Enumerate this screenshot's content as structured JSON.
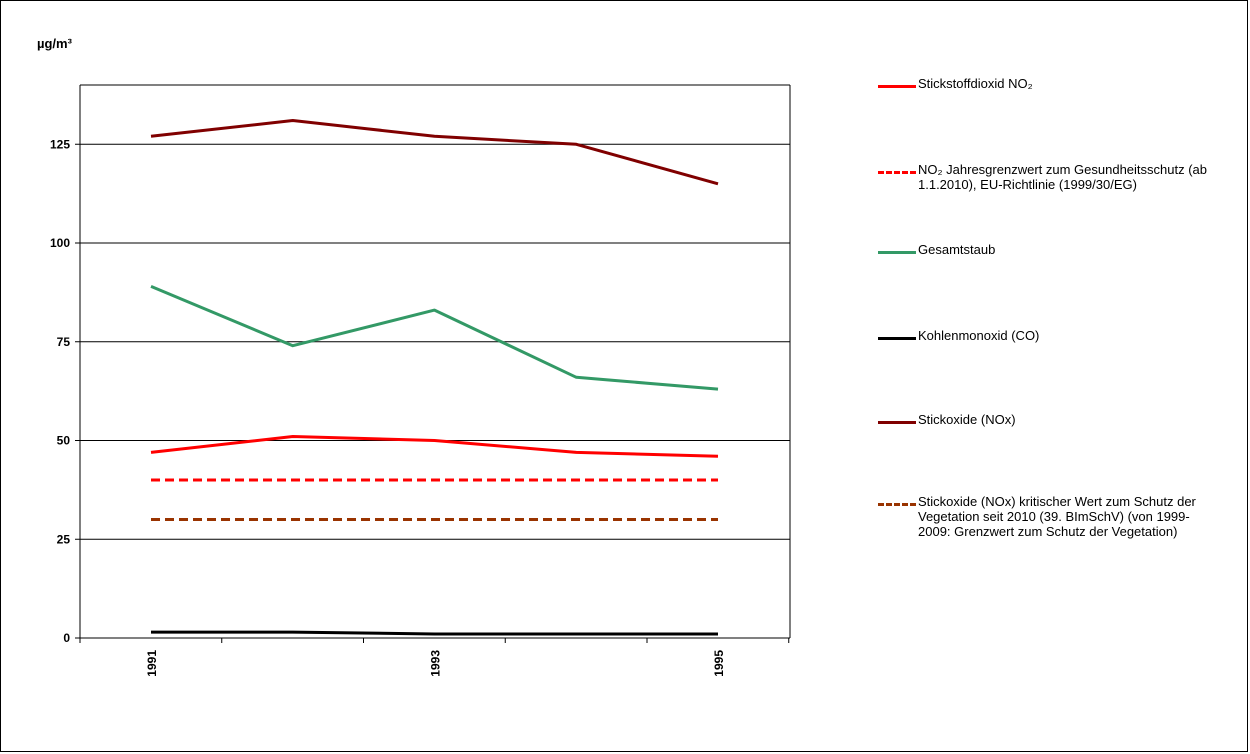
{
  "chart_data": {
    "type": "line",
    "ylabel": "µg/m³",
    "xlabel": "",
    "title": "",
    "x": [
      1991,
      1992,
      1993,
      1994,
      1995
    ],
    "x_tick_labels": [
      "1991",
      "1993",
      "1995"
    ],
    "ylim": [
      0,
      140
    ],
    "y_ticks": [
      0,
      25,
      50,
      75,
      100,
      125
    ],
    "grid": "horizontal",
    "legend_position": "right",
    "series": [
      {
        "name": "Stickstoffdioxid NO₂",
        "color": "#ff0000",
        "dash": "solid",
        "values": [
          47,
          51,
          50,
          47,
          46
        ]
      },
      {
        "name": "NO₂ Jahresgrenzwert  zum Gesundheitsschutz (ab 1.1.2010), EU-Richtlinie (1999/30/EG)",
        "color": "#ff0000",
        "dash": "dashed",
        "values": [
          40,
          40,
          40,
          40,
          40
        ]
      },
      {
        "name": "Gesamtstaub",
        "color": "#339966",
        "dash": "solid",
        "values": [
          89,
          74,
          83,
          66,
          63
        ]
      },
      {
        "name": "Kohlenmonoxid (CO)",
        "color": "#000000",
        "dash": "solid",
        "values": [
          1.5,
          1.5,
          1,
          1,
          1
        ]
      },
      {
        "name": "Stickoxide (NOx)",
        "color": "#800000",
        "dash": "solid",
        "values": [
          127,
          131,
          127,
          125,
          115
        ]
      },
      {
        "name": "Stickoxide (NOx) kritischer Wert zum Schutz der Vegetation seit 2010 (39. BImSchV) (von 1999-2009: Grenzwert zum Schutz der Vegetation)",
        "color": "#993300",
        "dash": "dashed",
        "values": [
          30,
          30,
          30,
          30,
          30
        ]
      }
    ]
  }
}
